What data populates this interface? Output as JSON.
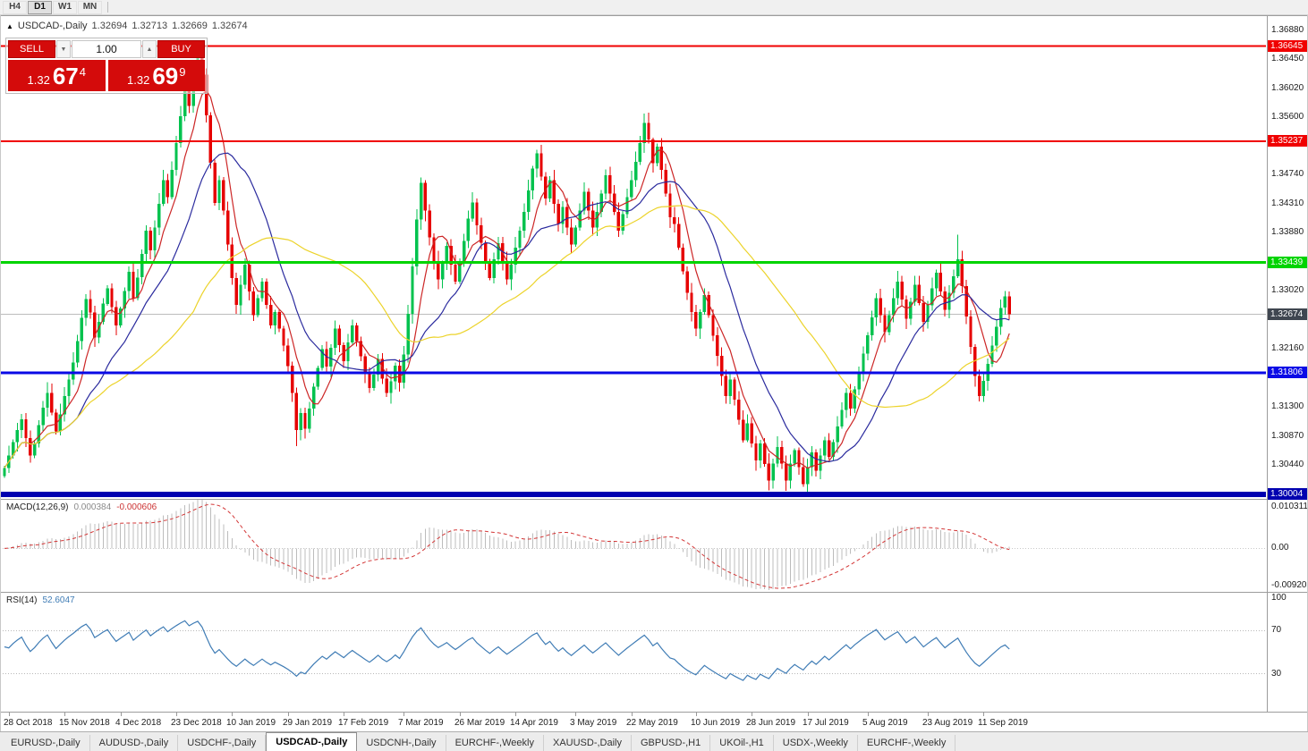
{
  "toolbar": {
    "timeframes": [
      {
        "label": "H4",
        "active": false
      },
      {
        "label": "D1",
        "active": true
      },
      {
        "label": "W1",
        "active": false
      },
      {
        "label": "MN",
        "active": false
      }
    ]
  },
  "icons": {
    "collapse": "▲",
    "chevron_down": "▼",
    "chevron_up": "▲"
  },
  "chart_header": {
    "symbol": "USDCAD-,Daily",
    "open": "1.32694",
    "high": "1.32713",
    "low": "1.32669",
    "close": "1.32674"
  },
  "trade_panel": {
    "sell_label": "SELL",
    "buy_label": "BUY",
    "volume": "1.00",
    "sell_price": {
      "big": "1.32",
      "mid": "67",
      "sup": "4"
    },
    "buy_price": {
      "big": "1.32",
      "mid": "69",
      "sup": "9"
    }
  },
  "macd": {
    "label": "MACD(12,26,9)",
    "main_value": "0.000384",
    "signal_value": "-0.000606"
  },
  "rsi": {
    "label": "RSI(14)",
    "value": "52.6047"
  },
  "x_axis": {
    "labels": [
      {
        "text": "28 Oct 2018",
        "bar": 1
      },
      {
        "text": "15 Nov 2018",
        "bar": 14
      },
      {
        "text": "4 Dec 2018",
        "bar": 27
      },
      {
        "text": "23 Dec 2018",
        "bar": 40
      },
      {
        "text": "10 Jan 2019",
        "bar": 53
      },
      {
        "text": "29 Jan 2019",
        "bar": 66
      },
      {
        "text": "17 Feb 2019",
        "bar": 79
      },
      {
        "text": "7 Mar 2019",
        "bar": 93
      },
      {
        "text": "26 Mar 2019",
        "bar": 106
      },
      {
        "text": "14 Apr 2019",
        "bar": 119
      },
      {
        "text": "3 May 2019",
        "bar": 133
      },
      {
        "text": "22 May 2019",
        "bar": 146
      },
      {
        "text": "10 Jun 2019",
        "bar": 161
      },
      {
        "text": "28 Jun 2019",
        "bar": 174
      },
      {
        "text": "17 Jul 2019",
        "bar": 187
      },
      {
        "text": "5 Aug 2019",
        "bar": 201
      },
      {
        "text": "23 Aug 2019",
        "bar": 215
      },
      {
        "text": "11 Sep 2019",
        "bar": 228
      }
    ]
  },
  "tabs": [
    {
      "label": "EURUSD-,Daily",
      "active": false
    },
    {
      "label": "AUDUSD-,Daily",
      "active": false
    },
    {
      "label": "USDCHF-,Daily",
      "active": false
    },
    {
      "label": "USDCAD-,Daily",
      "active": true
    },
    {
      "label": "USDCNH-,Daily",
      "active": false
    },
    {
      "label": "EURCHF-,Weekly",
      "active": false
    },
    {
      "label": "XAUUSD-,Daily",
      "active": false
    },
    {
      "label": "GBPUSD-,H1",
      "active": false
    },
    {
      "label": "UKOil-,H1",
      "active": false
    },
    {
      "label": "USDX-,Weekly",
      "active": false
    },
    {
      "label": "EURCHF-,Weekly",
      "active": false
    }
  ],
  "chart_data": {
    "type": "candlestick",
    "symbol": "USDCAD",
    "timeframe": "Daily",
    "current_ohlc": {
      "open": 1.32694,
      "high": 1.32713,
      "low": 1.32669,
      "close": 1.32674
    },
    "ylim": [
      1.2994,
      1.3709
    ],
    "first_open": 1.3028,
    "closes": [
      1.304,
      1.3058,
      1.3078,
      1.3096,
      1.3112,
      1.3084,
      1.3058,
      1.3076,
      1.3103,
      1.3129,
      1.3151,
      1.3122,
      1.3094,
      1.3119,
      1.3146,
      1.3171,
      1.3196,
      1.3228,
      1.3262,
      1.329,
      1.327,
      1.3233,
      1.3256,
      1.3283,
      1.3306,
      1.3278,
      1.3251,
      1.3276,
      1.3302,
      1.333,
      1.3291,
      1.3322,
      1.3357,
      1.3391,
      1.3362,
      1.3396,
      1.3431,
      1.3466,
      1.3441,
      1.3481,
      1.3521,
      1.3561,
      1.3601,
      1.3576,
      1.3616,
      1.3652,
      1.3622,
      1.3562,
      1.3492,
      1.3432,
      1.3466,
      1.3421,
      1.3371,
      1.3321,
      1.3281,
      1.3311,
      1.3341,
      1.3301,
      1.3266,
      1.3291,
      1.3316,
      1.3281,
      1.3251,
      1.3271,
      1.3246,
      1.3221,
      1.3191,
      1.3151,
      1.3096,
      1.3121,
      1.3098,
      1.3128,
      1.316,
      1.3188,
      1.3216,
      1.319,
      1.3218,
      1.3246,
      1.3222,
      1.3198,
      1.3226,
      1.3251,
      1.3228,
      1.3205,
      1.3181,
      1.3158,
      1.3178,
      1.3201,
      1.3172,
      1.3151,
      1.3168,
      1.3191,
      1.3166,
      1.3208,
      1.3268,
      1.3338,
      1.3408,
      1.3462,
      1.3421,
      1.3381,
      1.3346,
      1.3319,
      1.3343,
      1.3369,
      1.3341,
      1.3316,
      1.3343,
      1.3376,
      1.3409,
      1.3433,
      1.3399,
      1.3373,
      1.3346,
      1.3321,
      1.3349,
      1.3373,
      1.3345,
      1.3319,
      1.3341,
      1.3366,
      1.3391,
      1.3419,
      1.3451,
      1.3483,
      1.3506,
      1.3471,
      1.3439,
      1.3466,
      1.3431,
      1.3401,
      1.3426,
      1.3396,
      1.3371,
      1.3396,
      1.3421,
      1.3449,
      1.3421,
      1.3396,
      1.3419,
      1.3446,
      1.3473,
      1.3446,
      1.3419,
      1.3391,
      1.3416,
      1.3441,
      1.3466,
      1.3493,
      1.3521,
      1.3551,
      1.3526,
      1.3491,
      1.3516,
      1.3481,
      1.3446,
      1.3411,
      1.3401,
      1.3366,
      1.3331,
      1.3299,
      1.3271,
      1.3246,
      1.3271,
      1.3296,
      1.3266,
      1.3236,
      1.3206,
      1.3176,
      1.3146,
      1.3171,
      1.3141,
      1.3111,
      1.3081,
      1.3106,
      1.3076,
      1.3051,
      1.3076,
      1.3046,
      1.3021,
      1.3046,
      1.3071,
      1.3046,
      1.3021,
      1.3046,
      1.3066,
      1.3041,
      1.3016,
      1.3041,
      1.3063,
      1.3036,
      1.3058,
      1.3081,
      1.3056,
      1.3078,
      1.3101,
      1.3126,
      1.3151,
      1.3128,
      1.3156,
      1.3181,
      1.3209,
      1.3236,
      1.3263,
      1.3291,
      1.3266,
      1.3241,
      1.3266,
      1.3291,
      1.3316,
      1.3289,
      1.3261,
      1.3286,
      1.3311,
      1.3284,
      1.3256,
      1.3281,
      1.3306,
      1.3329,
      1.3301,
      1.3274,
      1.3299,
      1.3324,
      1.3349,
      1.3309,
      1.3264,
      1.3219,
      1.3176,
      1.3146,
      1.3169,
      1.3194,
      1.3221,
      1.3249,
      1.3277,
      1.3294,
      1.32674
    ],
    "wick_overrides": {
      "45": {
        "h": 1.36645
      },
      "68": {
        "l": 1.3072
      },
      "97": {
        "h": 1.347
      },
      "124": {
        "h": 1.3511
      },
      "149": {
        "h": 1.3565
      },
      "186": {
        "l": 1.3012
      },
      "222": {
        "h": 1.3385
      },
      "227": {
        "l": 1.3138
      }
    },
    "up_color": "#00c24e",
    "down_color": "#e60000",
    "moving_averages": [
      {
        "period": 7,
        "color": "#cc2626"
      },
      {
        "period": 18,
        "color": "#2b2b9e"
      },
      {
        "period": 45,
        "color": "#ecd32a"
      }
    ],
    "levels": [
      {
        "price": 1.36645,
        "label": "1.36645",
        "color": "#f00000",
        "width": 2
      },
      {
        "price": 1.35237,
        "label": "1.35237",
        "color": "#f00000",
        "width": 2
      },
      {
        "price": 1.33439,
        "label": "1.33439",
        "color": "#00d400",
        "width": 3
      },
      {
        "price": 1.31806,
        "label": "1.31806",
        "color": "#0a0ae6",
        "width": 3
      },
      {
        "price": 1.30004,
        "label": "1.30004",
        "color": "#0000b0",
        "width": 6
      }
    ],
    "current_price": {
      "price": 1.32674,
      "label": "1.32674",
      "line_color": "#bdbdbd",
      "badge_color": "#3f4650"
    },
    "price_axis_ticks": [
      1.3688,
      1.3645,
      1.3602,
      1.356,
      1.3474,
      1.3431,
      1.3388,
      1.3302,
      1.3216,
      1.313,
      1.3087,
      1.3044
    ],
    "macd": {
      "fast": 12,
      "slow": 26,
      "signal": 9,
      "range": [
        -0.009203,
        0.010311
      ],
      "axis_labels": [
        "0.010311",
        "0.00",
        "-0.009203"
      ],
      "hist_color": "#bcbcbc",
      "signal_color": "#d33636"
    },
    "rsi": {
      "period": 14,
      "color": "#3f7cb5",
      "levels": [
        70,
        30
      ],
      "axis_labels": [
        "100",
        "70",
        "30"
      ]
    }
  }
}
